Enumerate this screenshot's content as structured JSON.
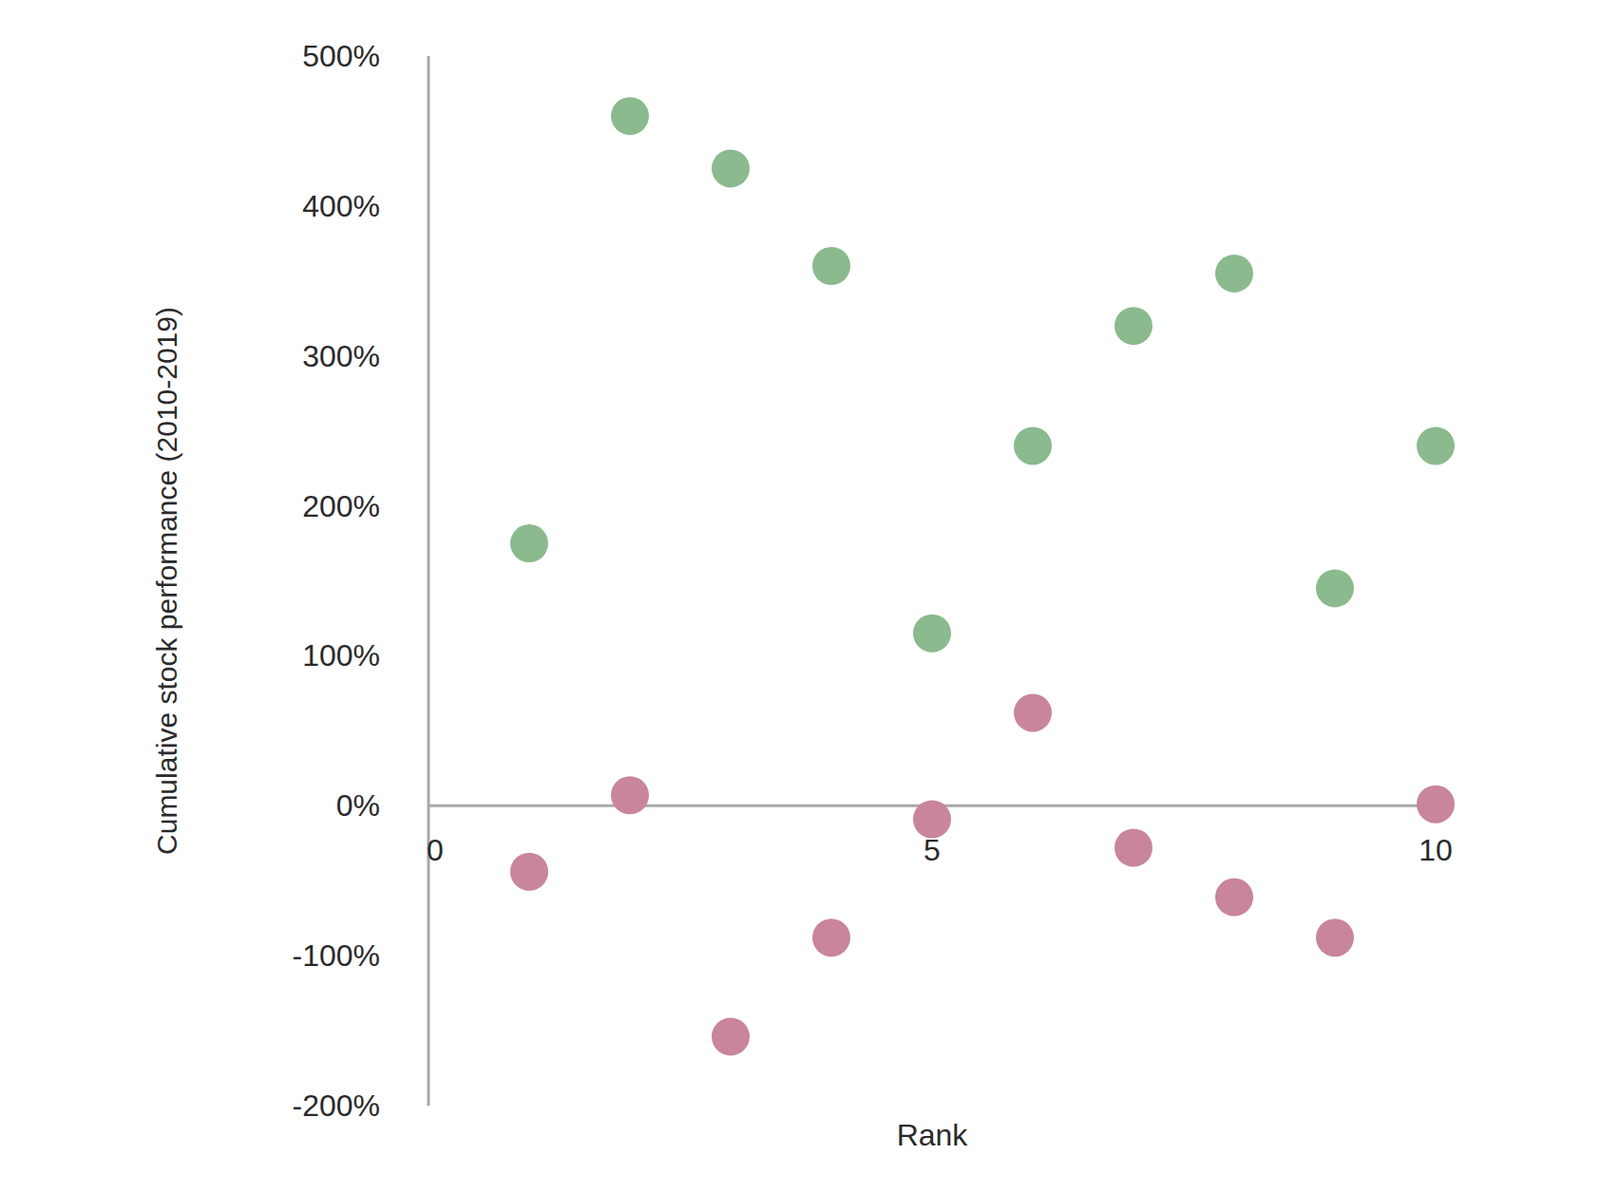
{
  "chart_data": {
    "type": "scatter",
    "x_label": "Rank",
    "y_label": "Cumulative stock performance (2010-2019)",
    "x": [
      1,
      2,
      3,
      4,
      5,
      6,
      7,
      8,
      9,
      10
    ],
    "series": [
      {
        "color": "#8aba8e",
        "marker": "circle",
        "values": [
          175,
          460,
          425,
          360,
          115,
          240,
          320,
          355,
          145,
          240
        ]
      },
      {
        "color": "#c98599",
        "marker": "circle",
        "values": [
          -44,
          7,
          -154,
          -88,
          -9,
          62,
          -28,
          -61,
          -88,
          1
        ]
      }
    ],
    "xlim": [
      0,
      10
    ],
    "xticks": [
      0,
      5,
      10
    ],
    "ylim": [
      -200,
      500
    ],
    "yticks": [
      {
        "value": -200,
        "label": "-200%"
      },
      {
        "value": -100,
        "label": "-100%"
      },
      {
        "value": 0,
        "label": "0%"
      },
      {
        "value": 100,
        "label": "100%"
      },
      {
        "value": 200,
        "label": "200%"
      },
      {
        "value": 300,
        "label": "300%"
      },
      {
        "value": 400,
        "label": "400%"
      },
      {
        "value": 500,
        "label": "500%"
      }
    ],
    "grid": false
  }
}
